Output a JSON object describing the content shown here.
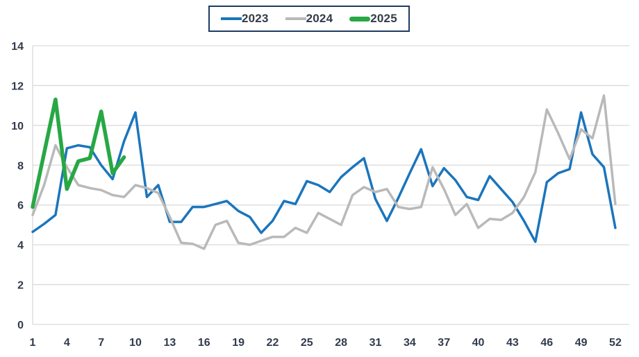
{
  "legend": {
    "border_color": "#1f3a63",
    "text_color": "#333b4a"
  },
  "chart_data": {
    "type": "line",
    "title": "",
    "xlabel": "",
    "ylabel": "",
    "x_range": [
      1,
      52
    ],
    "ylim": [
      0,
      14
    ],
    "y_ticks": [
      0,
      2,
      4,
      6,
      8,
      10,
      12,
      14
    ],
    "x_ticks": [
      1,
      4,
      7,
      10,
      13,
      16,
      19,
      22,
      25,
      28,
      31,
      34,
      37,
      40,
      43,
      46,
      49,
      52
    ],
    "grid": true,
    "legend_position": "top-center",
    "axis_color": "#d9d9d9",
    "tick_label_color": "#323b4d",
    "series": [
      {
        "name": "2023",
        "color": "#1b75bc",
        "stroke_width": 3.5,
        "x_start": 1,
        "values": [
          4.65,
          5.05,
          5.5,
          8.85,
          9.0,
          8.9,
          8.0,
          7.3,
          9.2,
          10.65,
          6.4,
          7.0,
          5.15,
          5.15,
          5.9,
          5.9,
          6.05,
          6.2,
          5.7,
          5.4,
          4.6,
          5.2,
          6.2,
          6.05,
          7.2,
          7.0,
          6.65,
          7.4,
          7.9,
          8.35,
          6.3,
          5.2,
          6.35,
          7.6,
          8.8,
          6.95,
          7.85,
          7.25,
          6.4,
          6.25,
          7.45,
          6.8,
          6.15,
          5.2,
          4.15,
          7.15,
          7.6,
          7.8,
          10.65,
          8.55,
          7.9,
          4.85
        ]
      },
      {
        "name": "2024",
        "color": "#b9b9b9",
        "stroke_width": 3.5,
        "x_start": 1,
        "values": [
          5.5,
          7.0,
          9.0,
          7.9,
          7.0,
          6.85,
          6.75,
          6.5,
          6.4,
          7.0,
          6.85,
          6.6,
          5.4,
          4.1,
          4.05,
          3.8,
          5.0,
          5.2,
          4.1,
          4.0,
          4.2,
          4.4,
          4.4,
          4.85,
          4.6,
          5.6,
          5.3,
          5.0,
          6.5,
          6.9,
          6.65,
          6.8,
          5.9,
          5.8,
          5.9,
          7.9,
          6.8,
          5.5,
          6.05,
          4.85,
          5.3,
          5.25,
          5.6,
          6.4,
          7.65,
          10.8,
          9.6,
          8.3,
          9.8,
          9.35,
          11.5,
          6.05
        ]
      },
      {
        "name": "2025",
        "color": "#27a844",
        "stroke_width": 5.5,
        "x_start": 1,
        "values": [
          5.9,
          8.6,
          11.3,
          6.8,
          8.2,
          8.35,
          10.7,
          7.6,
          8.4
        ]
      }
    ]
  }
}
